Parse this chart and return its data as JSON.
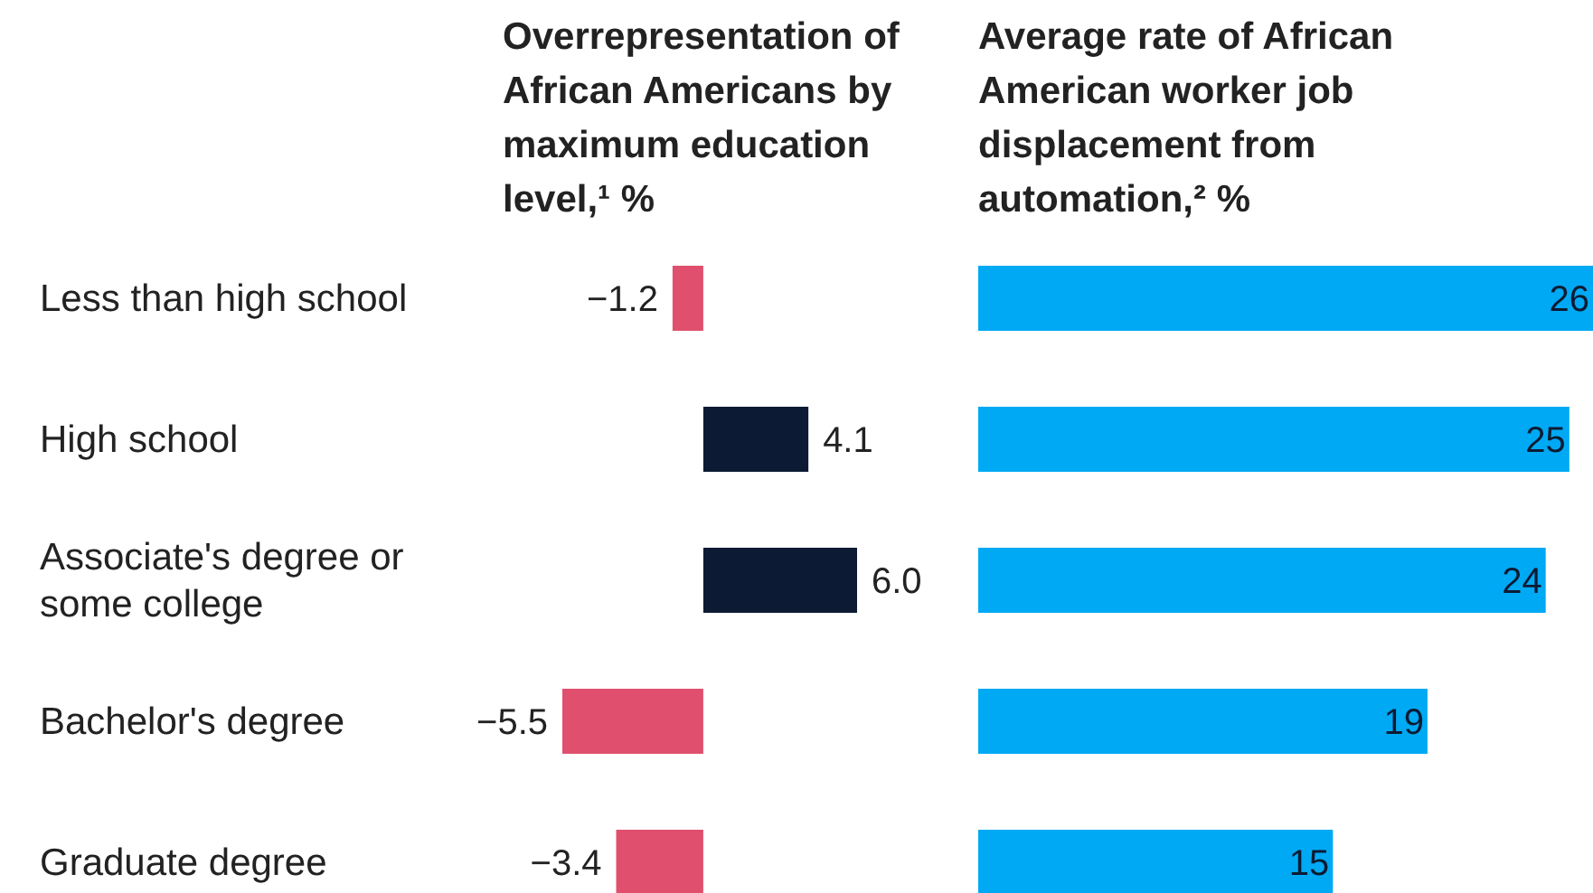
{
  "chart_data": [
    {
      "type": "bar",
      "orientation": "horizontal",
      "title": "Overrepresentation of African Americans by maximum education level,¹ %",
      "categories": [
        "Less than high school",
        "High school",
        "Associate's degree or some college",
        "Bachelor's degree",
        "Graduate degree"
      ],
      "values": [
        -1.2,
        4.1,
        6.0,
        -5.5,
        -3.4
      ],
      "value_labels": [
        "−1.2",
        "4.1",
        "6.0",
        "−5.5",
        "−3.4"
      ],
      "colors": [
        "#e0506e",
        "#0c1b33",
        "#0c1b33",
        "#e0506e",
        "#e0506e"
      ]
    },
    {
      "type": "bar",
      "orientation": "horizontal",
      "title": "Average rate of African American worker job displacement from automation,² %",
      "categories": [
        null,
        null,
        null,
        null,
        null
      ],
      "values": [
        26,
        25,
        24,
        19,
        15
      ],
      "color": "#00a9f4",
      "data_labels": true
    }
  ]
}
